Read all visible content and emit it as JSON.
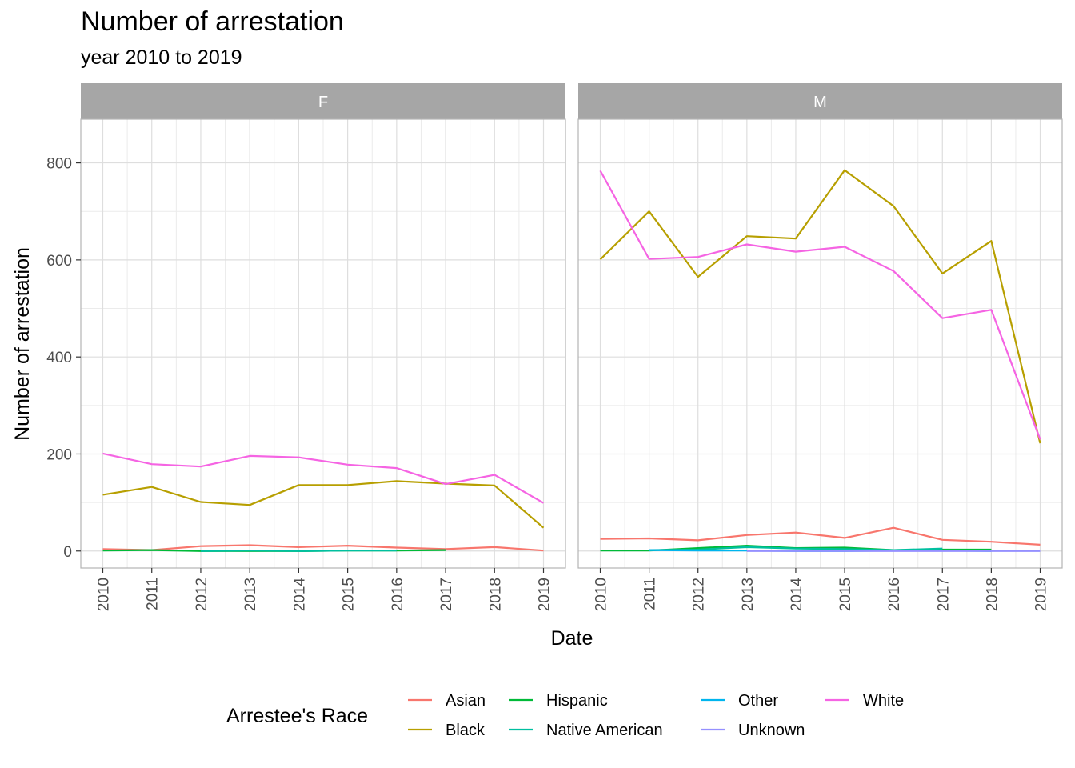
{
  "chart_data": {
    "type": "line",
    "title": "Number of arrestation",
    "subtitle": "year 2010 to 2019",
    "xlabel": "Date",
    "ylabel": "Number of arrestation",
    "x_ticks": [
      "2010",
      "2011",
      "2012",
      "2013",
      "2014",
      "2015",
      "2016",
      "2017",
      "2018",
      "2019"
    ],
    "ylim": [
      -35,
      890
    ],
    "y_ticks": [
      0,
      200,
      400,
      600,
      800
    ],
    "grid": true,
    "legend": {
      "title": "Arrestee's Race",
      "position": "bottom",
      "entries": [
        "Asian",
        "Black",
        "Hispanic",
        "Native American",
        "Other",
        "Unknown",
        "White"
      ]
    },
    "colors": {
      "Asian": "#F8766D",
      "Black": "#B79F00",
      "Hispanic": "#00BA38",
      "Native American": "#00BFA0",
      "Other": "#00B5EE",
      "Unknown": "#9590FF",
      "White": "#F564E3"
    },
    "panels": [
      {
        "name": "F",
        "series": [
          {
            "name": "Asian",
            "x": [
              2010,
              2011,
              2012,
              2013,
              2014,
              2015,
              2016,
              2017,
              2018,
              2019
            ],
            "values": [
              4,
              2,
              10,
              12,
              8,
              11,
              7,
              4,
              8,
              1
            ]
          },
          {
            "name": "Black",
            "x": [
              2010,
              2011,
              2012,
              2013,
              2014,
              2015,
              2016,
              2017,
              2018,
              2019
            ],
            "values": [
              116,
              132,
              101,
              95,
              136,
              136,
              144,
              139,
              135,
              48
            ]
          },
          {
            "name": "Hispanic",
            "x": [
              2010,
              2011,
              2012,
              2013,
              2014,
              2015,
              2016,
              2017
            ],
            "values": [
              1,
              2,
              0,
              0,
              0,
              1,
              1,
              2
            ]
          },
          {
            "name": "Native American",
            "x": [
              2012,
              2013,
              2014,
              2015,
              2016
            ],
            "values": [
              0,
              1,
              0,
              1,
              1
            ]
          },
          {
            "name": "White",
            "x": [
              2010,
              2011,
              2012,
              2013,
              2014,
              2015,
              2016,
              2017,
              2018,
              2019
            ],
            "values": [
              201,
              179,
              174,
              196,
              193,
              178,
              171,
              138,
              157,
              99
            ]
          }
        ]
      },
      {
        "name": "M",
        "series": [
          {
            "name": "Asian",
            "x": [
              2010,
              2011,
              2012,
              2013,
              2014,
              2015,
              2016,
              2017,
              2018,
              2019
            ],
            "values": [
              25,
              26,
              22,
              33,
              38,
              27,
              48,
              23,
              19,
              13
            ]
          },
          {
            "name": "Black",
            "x": [
              2010,
              2011,
              2012,
              2013,
              2014,
              2015,
              2016,
              2017,
              2018,
              2019
            ],
            "values": [
              601,
              700,
              565,
              649,
              644,
              785,
              711,
              572,
              639,
              222
            ]
          },
          {
            "name": "Hispanic",
            "x": [
              2010,
              2011,
              2012,
              2013,
              2014,
              2015,
              2016,
              2017,
              2018
            ],
            "values": [
              1,
              1,
              6,
              11,
              6,
              7,
              2,
              3,
              3
            ]
          },
          {
            "name": "Native American",
            "x": [
              2011,
              2012,
              2013,
              2014,
              2015,
              2016,
              2017
            ],
            "values": [
              2,
              3,
              8,
              5,
              4,
              2,
              5
            ]
          },
          {
            "name": "Other",
            "x": [
              2011,
              2012,
              2013,
              2014,
              2015,
              2016,
              2017,
              2018
            ],
            "values": [
              2,
              1,
              1,
              0,
              0,
              1,
              1,
              0
            ]
          },
          {
            "name": "Unknown",
            "x": [
              2013,
              2014,
              2015,
              2016,
              2017,
              2018,
              2019
            ],
            "values": [
              0,
              0,
              0,
              0,
              0,
              0,
              0
            ]
          },
          {
            "name": "White",
            "x": [
              2010,
              2011,
              2012,
              2013,
              2014,
              2015,
              2016,
              2017,
              2018,
              2019
            ],
            "values": [
              784,
              602,
              606,
              632,
              617,
              627,
              577,
              480,
              497,
              230
            ]
          }
        ]
      }
    ]
  }
}
